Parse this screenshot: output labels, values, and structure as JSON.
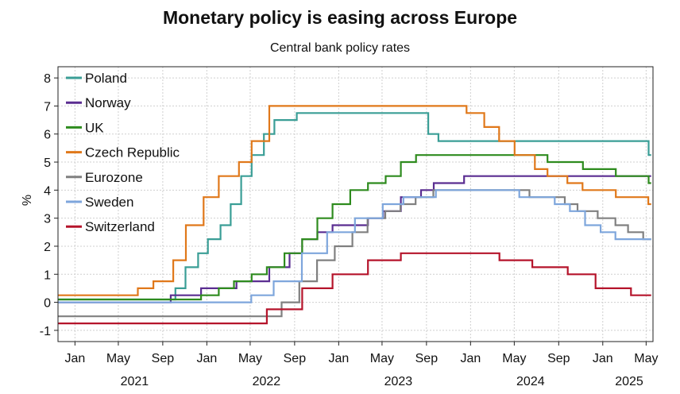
{
  "chart_data": {
    "type": "line",
    "title": "Monetary policy is easing across Europe",
    "subtitle": "Central bank policy rates",
    "ylabel": "%",
    "xlabel": "",
    "ylim": [
      -1.4,
      8.4
    ],
    "xlim": [
      "2020-11-15",
      "2025-05-20"
    ],
    "y_ticks": [
      -1,
      0,
      1,
      2,
      3,
      4,
      5,
      6,
      7,
      8
    ],
    "x_ticks": [
      {
        "date": "2021-01-01",
        "label": "Jan"
      },
      {
        "date": "2021-05-01",
        "label": "May"
      },
      {
        "date": "2021-09-01",
        "label": "Sep"
      },
      {
        "date": "2022-01-01",
        "label": "Jan"
      },
      {
        "date": "2022-05-01",
        "label": "May"
      },
      {
        "date": "2022-09-01",
        "label": "Sep"
      },
      {
        "date": "2023-01-01",
        "label": "Jan"
      },
      {
        "date": "2023-05-01",
        "label": "May"
      },
      {
        "date": "2023-09-01",
        "label": "Sep"
      },
      {
        "date": "2024-01-01",
        "label": "Jan"
      },
      {
        "date": "2024-05-01",
        "label": "May"
      },
      {
        "date": "2024-09-01",
        "label": "Sep"
      },
      {
        "date": "2025-01-01",
        "label": "Jan"
      },
      {
        "date": "2025-05-01",
        "label": "May"
      }
    ],
    "year_labels": [
      {
        "date": "2021-06-15",
        "label": "2021"
      },
      {
        "date": "2022-06-15",
        "label": "2022"
      },
      {
        "date": "2023-06-15",
        "label": "2023"
      },
      {
        "date": "2024-06-15",
        "label": "2024"
      },
      {
        "date": "2025-03-15",
        "label": "2025"
      }
    ],
    "grid": true,
    "legend_position": "top-left",
    "end_date": "2025-05-15",
    "series": [
      {
        "name": "Poland",
        "color": "#3a9e96",
        "steps": [
          [
            "2020-11-15",
            0.1
          ],
          [
            "2021-10-06",
            0.5
          ],
          [
            "2021-11-03",
            1.25
          ],
          [
            "2021-12-08",
            1.75
          ],
          [
            "2022-01-04",
            2.25
          ],
          [
            "2022-02-08",
            2.75
          ],
          [
            "2022-03-08",
            3.5
          ],
          [
            "2022-04-06",
            4.5
          ],
          [
            "2022-05-05",
            5.25
          ],
          [
            "2022-06-08",
            6.0
          ],
          [
            "2022-07-07",
            6.5
          ],
          [
            "2022-09-07",
            6.75
          ],
          [
            "2023-09-06",
            6.0
          ],
          [
            "2023-10-04",
            5.75
          ],
          [
            "2025-05-08",
            5.25
          ]
        ]
      },
      {
        "name": "Norway",
        "color": "#5a2d91",
        "steps": [
          [
            "2020-11-15",
            0.0
          ],
          [
            "2021-09-23",
            0.25
          ],
          [
            "2021-12-16",
            0.5
          ],
          [
            "2022-03-24",
            0.75
          ],
          [
            "2022-06-23",
            1.25
          ],
          [
            "2022-08-18",
            1.75
          ],
          [
            "2022-09-22",
            2.25
          ],
          [
            "2022-11-03",
            2.5
          ],
          [
            "2022-12-15",
            2.75
          ],
          [
            "2023-03-23",
            3.0
          ],
          [
            "2023-05-04",
            3.25
          ],
          [
            "2023-06-22",
            3.75
          ],
          [
            "2023-08-17",
            4.0
          ],
          [
            "2023-09-21",
            4.25
          ],
          [
            "2023-12-14",
            4.5
          ],
          [
            "2025-05-08",
            4.5
          ]
        ]
      },
      {
        "name": "UK",
        "color": "#2e8b1e",
        "steps": [
          [
            "2020-11-15",
            0.1
          ],
          [
            "2021-12-16",
            0.25
          ],
          [
            "2022-02-03",
            0.5
          ],
          [
            "2022-03-17",
            0.75
          ],
          [
            "2022-05-05",
            1.0
          ],
          [
            "2022-06-16",
            1.25
          ],
          [
            "2022-08-04",
            1.75
          ],
          [
            "2022-09-22",
            2.25
          ],
          [
            "2022-11-03",
            3.0
          ],
          [
            "2022-12-15",
            3.5
          ],
          [
            "2023-02-02",
            4.0
          ],
          [
            "2023-03-23",
            4.25
          ],
          [
            "2023-05-11",
            4.5
          ],
          [
            "2023-06-22",
            5.0
          ],
          [
            "2023-08-03",
            5.25
          ],
          [
            "2024-08-01",
            5.0
          ],
          [
            "2024-11-07",
            4.75
          ],
          [
            "2025-02-06",
            4.5
          ],
          [
            "2025-05-08",
            4.25
          ]
        ]
      },
      {
        "name": "Czech Republic",
        "color": "#e0781a",
        "steps": [
          [
            "2020-11-15",
            0.25
          ],
          [
            "2021-06-24",
            0.5
          ],
          [
            "2021-08-06",
            0.75
          ],
          [
            "2021-09-30",
            1.5
          ],
          [
            "2021-11-04",
            2.75
          ],
          [
            "2021-12-23",
            3.75
          ],
          [
            "2022-02-03",
            4.5
          ],
          [
            "2022-03-31",
            5.0
          ],
          [
            "2022-05-05",
            5.75
          ],
          [
            "2022-06-23",
            7.0
          ],
          [
            "2023-12-21",
            6.75
          ],
          [
            "2024-02-08",
            6.25
          ],
          [
            "2024-03-20",
            5.75
          ],
          [
            "2024-05-02",
            5.25
          ],
          [
            "2024-06-27",
            4.75
          ],
          [
            "2024-08-01",
            4.5
          ],
          [
            "2024-09-25",
            4.25
          ],
          [
            "2024-11-06",
            4.0
          ],
          [
            "2025-02-06",
            3.75
          ],
          [
            "2025-05-07",
            3.5
          ]
        ]
      },
      {
        "name": "Eurozone",
        "color": "#808080",
        "steps": [
          [
            "2020-11-15",
            -0.5
          ],
          [
            "2022-07-27",
            0.0
          ],
          [
            "2022-09-14",
            0.75
          ],
          [
            "2022-11-02",
            1.5
          ],
          [
            "2022-12-21",
            2.0
          ],
          [
            "2023-02-08",
            2.5
          ],
          [
            "2023-03-22",
            3.0
          ],
          [
            "2023-05-10",
            3.25
          ],
          [
            "2023-06-21",
            3.5
          ],
          [
            "2023-08-02",
            3.75
          ],
          [
            "2023-09-20",
            4.0
          ],
          [
            "2024-06-12",
            3.75
          ],
          [
            "2024-09-18",
            3.5
          ],
          [
            "2024-10-23",
            3.25
          ],
          [
            "2024-12-18",
            3.0
          ],
          [
            "2025-02-05",
            2.75
          ],
          [
            "2025-03-12",
            2.5
          ],
          [
            "2025-04-23",
            2.25
          ]
        ]
      },
      {
        "name": "Sweden",
        "color": "#7ea6dc",
        "steps": [
          [
            "2020-11-15",
            0.0
          ],
          [
            "2022-05-04",
            0.25
          ],
          [
            "2022-07-05",
            0.75
          ],
          [
            "2022-09-21",
            1.75
          ],
          [
            "2022-11-30",
            2.5
          ],
          [
            "2023-02-15",
            3.0
          ],
          [
            "2023-05-03",
            3.5
          ],
          [
            "2023-06-29",
            3.75
          ],
          [
            "2023-09-27",
            4.0
          ],
          [
            "2024-05-15",
            3.75
          ],
          [
            "2024-08-21",
            3.5
          ],
          [
            "2024-10-02",
            3.25
          ],
          [
            "2024-11-13",
            2.75
          ],
          [
            "2024-12-26",
            2.5
          ],
          [
            "2025-02-05",
            2.25
          ]
        ]
      },
      {
        "name": "Switzerland",
        "color": "#b5142b",
        "steps": [
          [
            "2020-11-15",
            -0.75
          ],
          [
            "2022-06-16",
            -0.25
          ],
          [
            "2022-09-22",
            0.5
          ],
          [
            "2022-12-15",
            1.0
          ],
          [
            "2023-03-23",
            1.5
          ],
          [
            "2023-06-22",
            1.75
          ],
          [
            "2024-03-21",
            1.5
          ],
          [
            "2024-06-20",
            1.25
          ],
          [
            "2024-09-26",
            1.0
          ],
          [
            "2024-12-12",
            0.5
          ],
          [
            "2025-03-20",
            0.25
          ]
        ]
      }
    ]
  }
}
